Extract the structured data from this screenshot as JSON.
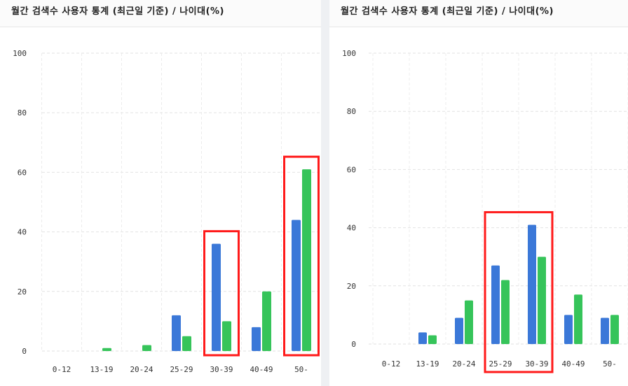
{
  "chart_data": [
    {
      "type": "bar",
      "title": "월간 검색수 사용자 통계 (최근일 기준) / 나이대(%)",
      "categories": [
        "0-12",
        "13-19",
        "20-24",
        "25-29",
        "30-39",
        "40-49",
        "50-"
      ],
      "series": [
        {
          "values": [
            0,
            0,
            0,
            12,
            36,
            8,
            44
          ],
          "color": "#3b78d8"
        },
        {
          "values": [
            0,
            1,
            2,
            5,
            10,
            20,
            61
          ],
          "color": "#36c45a"
        }
      ],
      "ylim": [
        0,
        100
      ],
      "yticks": [
        0,
        20,
        40,
        60,
        80,
        100
      ],
      "grid": true,
      "highlight_boxes": [
        [
          "30-39"
        ],
        [
          "50-"
        ]
      ]
    },
    {
      "type": "bar",
      "title": "월간 검색수 사용자 통계 (최근일 기준) / 나이대(%)",
      "categories": [
        "0-12",
        "13-19",
        "20-24",
        "25-29",
        "30-39",
        "40-49",
        "50-"
      ],
      "series": [
        {
          "values": [
            0,
            4,
            9,
            27,
            41,
            10,
            9
          ],
          "color": "#3b78d8"
        },
        {
          "values": [
            0,
            3,
            15,
            22,
            30,
            17,
            10
          ],
          "color": "#36c45a"
        }
      ],
      "ylim": [
        0,
        100
      ],
      "yticks": [
        0,
        20,
        40,
        60,
        80,
        100
      ],
      "grid": true,
      "highlight_boxes": [
        [
          "25-29",
          "30-39"
        ]
      ]
    }
  ]
}
